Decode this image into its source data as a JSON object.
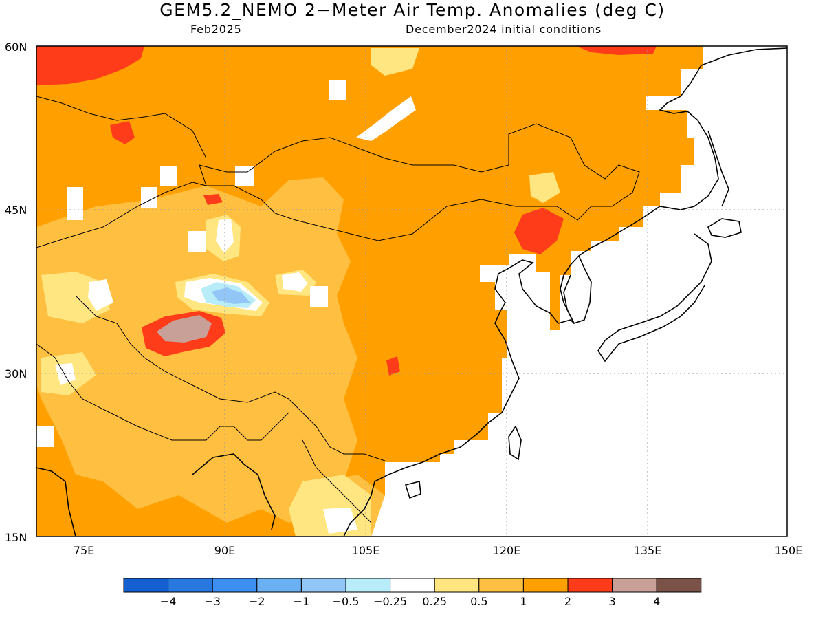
{
  "title": "GEM5.2_NEMO 2−Meter Air Temp. Anomalies (deg C)",
  "subtitle_left": "Feb2025",
  "subtitle_right": "December2024 initial conditions",
  "map": {
    "lon_range": [
      70,
      150
    ],
    "lat_range": [
      15,
      60
    ],
    "lat_labels": [
      "60N",
      "45N",
      "30N",
      "15N"
    ],
    "lon_labels": [
      "75E",
      "90E",
      "105E",
      "120E",
      "135E",
      "150E"
    ]
  },
  "colorbar": {
    "labels": [
      "−4",
      "−3",
      "−2",
      "−1",
      "−0.5",
      "−0.25",
      "0.25",
      "0.5",
      "1",
      "2",
      "3",
      "4"
    ],
    "colors": [
      "#1560d0",
      "#2878e0",
      "#3c8ef0",
      "#6cb0f4",
      "#92c6f6",
      "#b8ecf8",
      "#ffffff",
      "#ffe680",
      "#ffbf40",
      "#ffa000",
      "#ff3c1a",
      "#c8a098",
      "#7a5248"
    ]
  },
  "anomaly_colors": {
    "ocean": "#ffffff",
    "base": "#ffa000",
    "half_to_one": "#ffbf40",
    "quarter_to_half": "#ffe680",
    "near_zero": "#ffffff",
    "two_to_three": "#ff3c1a",
    "three_to_four": "#c8a098",
    "neg_025": "#b8ecf8",
    "neg_05": "#92c6f6"
  }
}
